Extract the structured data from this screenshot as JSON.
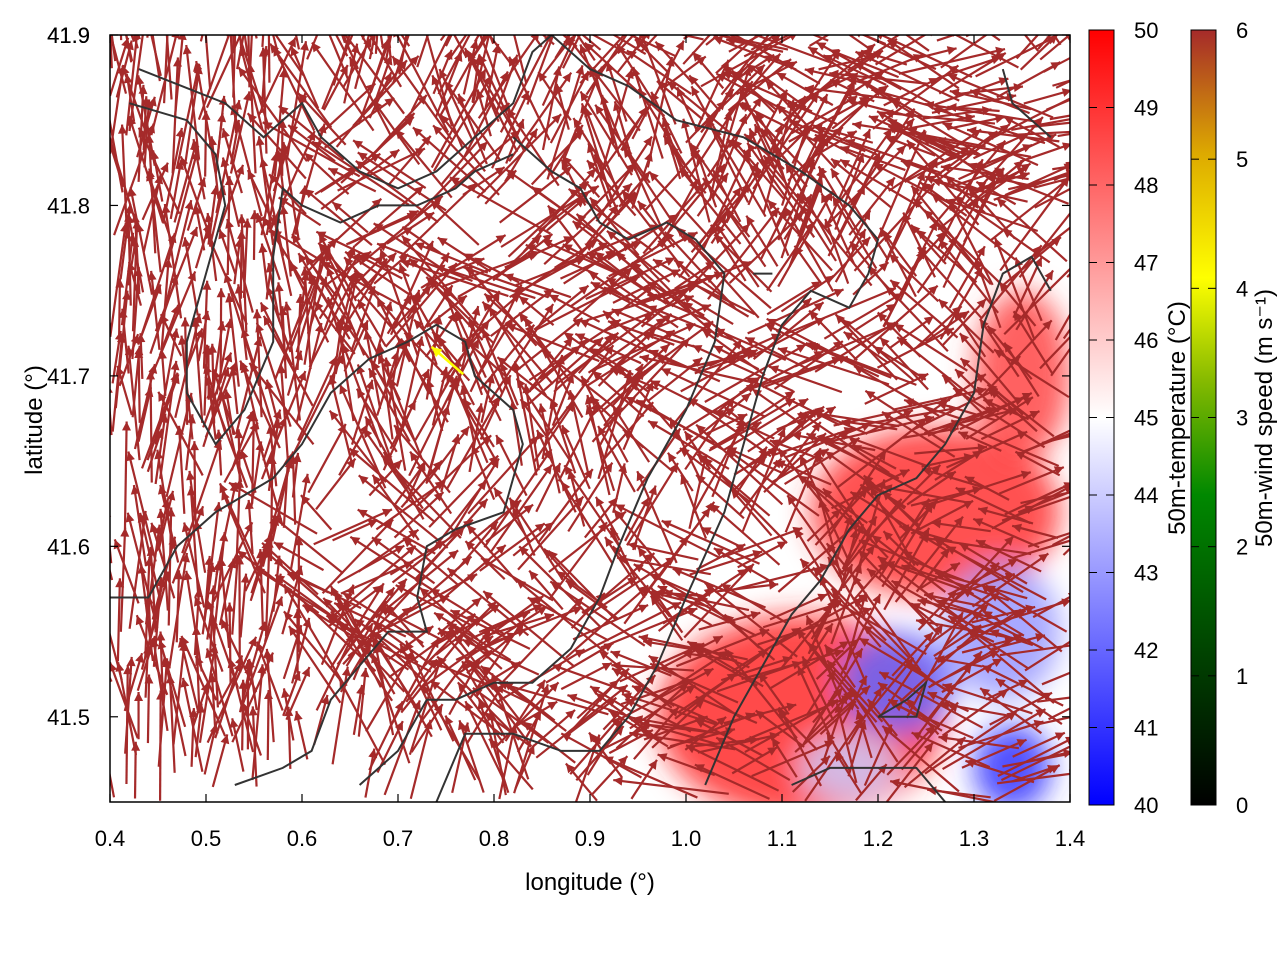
{
  "chart_data": {
    "type": "vector-field",
    "xlabel": "longitude (°)",
    "ylabel": "latitude (°)",
    "xlim": [
      0.4,
      1.4
    ],
    "ylim": [
      41.45,
      41.9
    ],
    "xticks": [
      "0.4",
      "0.5",
      "0.6",
      "0.7",
      "0.8",
      "0.9",
      "1.0",
      "1.1",
      "1.2",
      "1.3",
      "1.4"
    ],
    "yticks": [
      "41.5",
      "41.6",
      "41.7",
      "41.8",
      "41.9"
    ],
    "grid": false,
    "temperature_colorbar": {
      "label": "50m-temperature (°C)",
      "range": [
        40,
        50
      ],
      "ticks": [
        "40",
        "41",
        "42",
        "43",
        "44",
        "45",
        "46",
        "47",
        "48",
        "49",
        "50"
      ],
      "colors": {
        "low": "#0000ff",
        "mid": "#ffffff",
        "high": "#ff0000"
      }
    },
    "wind_colorbar": {
      "label": "50m-wind speed (m s⁻¹)",
      "range": [
        0,
        6
      ],
      "ticks": [
        "0",
        "1",
        "2",
        "3",
        "4",
        "5",
        "6"
      ],
      "colors": [
        "#000000",
        "#004400",
        "#008800",
        "#88bb00",
        "#ffff00",
        "#ddaa00",
        "#a52a2a"
      ]
    },
    "vector_color": "#a52a2a",
    "highlight_vector": {
      "lon": 0.768,
      "lat": 41.701,
      "dlon": -0.033,
      "dlat": 0.016,
      "color": "#ffff00"
    },
    "contour_color": "#333333",
    "contours": [
      [
        [
          0.43,
          41.88
        ],
        [
          0.52,
          41.86
        ],
        [
          0.56,
          41.84
        ],
        [
          0.6,
          41.86
        ],
        [
          0.62,
          41.84
        ],
        [
          0.66,
          41.82
        ],
        [
          0.7,
          41.81
        ],
        [
          0.74,
          41.82
        ],
        [
          0.78,
          41.84
        ],
        [
          0.82,
          41.86
        ],
        [
          0.84,
          41.89
        ],
        [
          0.86,
          41.9
        ]
      ],
      [
        [
          0.42,
          41.86
        ],
        [
          0.48,
          41.85
        ],
        [
          0.51,
          41.83
        ],
        [
          0.52,
          41.8
        ],
        [
          0.5,
          41.76
        ],
        [
          0.48,
          41.72
        ],
        [
          0.48,
          41.69
        ],
        [
          0.51,
          41.66
        ],
        [
          0.54,
          41.68
        ],
        [
          0.57,
          41.72
        ],
        [
          0.57,
          41.77
        ],
        [
          0.58,
          41.81
        ],
        [
          0.6,
          41.8
        ],
        [
          0.64,
          41.79
        ],
        [
          0.68,
          41.8
        ],
        [
          0.72,
          41.8
        ],
        [
          0.76,
          41.81
        ],
        [
          0.78,
          41.82
        ],
        [
          0.82,
          41.83
        ]
      ],
      [
        [
          0.4,
          41.57
        ],
        [
          0.44,
          41.57
        ],
        [
          0.47,
          41.6
        ],
        [
          0.51,
          41.62
        ],
        [
          0.57,
          41.64
        ],
        [
          0.6,
          41.66
        ],
        [
          0.63,
          41.69
        ],
        [
          0.67,
          41.71
        ],
        [
          0.71,
          41.72
        ],
        [
          0.74,
          41.73
        ],
        [
          0.77,
          41.72
        ],
        [
          0.78,
          41.7
        ],
        [
          0.82,
          41.68
        ],
        [
          0.83,
          41.66
        ],
        [
          0.81,
          41.62
        ],
        [
          0.76,
          41.61
        ],
        [
          0.73,
          41.6
        ],
        [
          0.72,
          41.57
        ],
        [
          0.73,
          41.55
        ],
        [
          0.69,
          41.55
        ],
        [
          0.66,
          41.53
        ],
        [
          0.63,
          41.51
        ],
        [
          0.61,
          41.48
        ],
        [
          0.58,
          41.47
        ],
        [
          0.53,
          41.46
        ]
      ],
      [
        [
          0.66,
          41.46
        ],
        [
          0.7,
          41.48
        ],
        [
          0.73,
          41.51
        ],
        [
          0.76,
          41.51
        ],
        [
          0.8,
          41.52
        ],
        [
          0.84,
          41.52
        ],
        [
          0.88,
          41.54
        ],
        [
          0.91,
          41.57
        ],
        [
          0.93,
          41.6
        ],
        [
          0.96,
          41.64
        ],
        [
          1.0,
          41.68
        ],
        [
          1.03,
          41.72
        ],
        [
          1.04,
          41.76
        ],
        [
          1.01,
          41.78
        ],
        [
          0.98,
          41.79
        ],
        [
          0.94,
          41.78
        ],
        [
          0.91,
          41.79
        ],
        [
          0.89,
          41.81
        ],
        [
          0.86,
          41.82
        ],
        [
          0.82,
          41.84
        ]
      ],
      [
        [
          0.74,
          41.45
        ],
        [
          0.77,
          41.49
        ],
        [
          0.82,
          41.49
        ],
        [
          0.87,
          41.48
        ],
        [
          0.91,
          41.48
        ],
        [
          0.94,
          41.5
        ],
        [
          0.97,
          41.53
        ],
        [
          1.0,
          41.57
        ],
        [
          1.04,
          41.62
        ],
        [
          1.06,
          41.66
        ],
        [
          1.08,
          41.7
        ],
        [
          1.1,
          41.73
        ],
        [
          1.13,
          41.75
        ],
        [
          1.17,
          41.74
        ],
        [
          1.19,
          41.76
        ],
        [
          1.2,
          41.78
        ],
        [
          1.17,
          41.8
        ],
        [
          1.12,
          41.82
        ],
        [
          1.06,
          41.84
        ],
        [
          0.99,
          41.85
        ],
        [
          0.94,
          41.87
        ],
        [
          0.9,
          41.88
        ],
        [
          0.86,
          41.9
        ]
      ],
      [
        [
          1.02,
          41.46
        ],
        [
          1.05,
          41.5
        ],
        [
          1.08,
          41.53
        ],
        [
          1.11,
          41.56
        ],
        [
          1.14,
          41.58
        ],
        [
          1.17,
          41.61
        ],
        [
          1.2,
          41.63
        ],
        [
          1.24,
          41.64
        ],
        [
          1.27,
          41.66
        ],
        [
          1.3,
          41.69
        ],
        [
          1.31,
          41.73
        ],
        [
          1.33,
          41.76
        ],
        [
          1.36,
          41.77
        ],
        [
          1.38,
          41.75
        ]
      ],
      [
        [
          1.11,
          41.46
        ],
        [
          1.15,
          41.47
        ],
        [
          1.19,
          41.47
        ],
        [
          1.24,
          41.47
        ],
        [
          1.27,
          41.45
        ]
      ],
      [
        [
          1.2,
          41.5
        ],
        [
          1.23,
          41.51
        ],
        [
          1.25,
          41.52
        ],
        [
          1.24,
          41.5
        ],
        [
          1.2,
          41.5
        ]
      ],
      [
        [
          1.07,
          41.76
        ],
        [
          1.08,
          41.76
        ],
        [
          1.09,
          41.76
        ],
        [
          1.07,
          41.76
        ]
      ],
      [
        [
          1.33,
          41.88
        ],
        [
          1.34,
          41.86
        ],
        [
          1.36,
          41.85
        ],
        [
          1.38,
          41.84
        ]
      ]
    ],
    "temperature_patches": [
      {
        "lon": 1.12,
        "lat": 41.5,
        "rlon": 0.15,
        "rlat": 0.06,
        "value": 49.2
      },
      {
        "lon": 1.26,
        "lat": 41.62,
        "rlon": 0.13,
        "rlat": 0.05,
        "value": 49.0
      },
      {
        "lon": 1.35,
        "lat": 41.7,
        "rlon": 0.05,
        "rlat": 0.05,
        "value": 48.6
      },
      {
        "lon": 1.22,
        "lat": 41.52,
        "rlon": 0.06,
        "rlat": 0.03,
        "value": 42.0
      },
      {
        "lon": 1.33,
        "lat": 41.55,
        "rlon": 0.06,
        "rlat": 0.04,
        "value": 43.0
      },
      {
        "lon": 1.34,
        "lat": 41.47,
        "rlon": 0.04,
        "rlat": 0.025,
        "value": 41.0
      },
      {
        "lon": 1.17,
        "lat": 41.47,
        "rlon": 0.05,
        "rlat": 0.02,
        "value": 44.0
      }
    ]
  }
}
